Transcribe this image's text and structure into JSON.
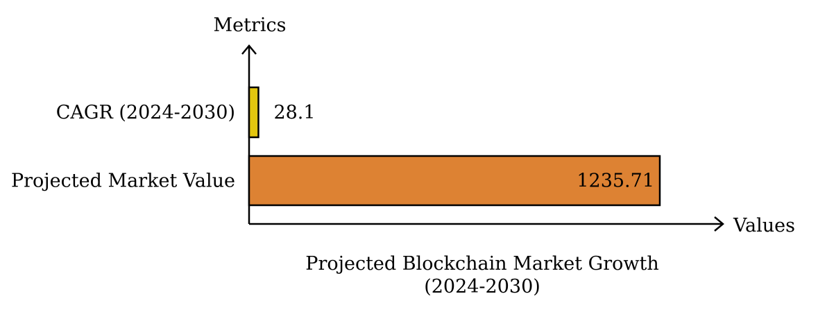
{
  "chart_data": {
    "type": "bar",
    "orientation": "horizontal",
    "title": "Projected Blockchain Market Growth\n(2024-2030)",
    "xlabel": "Values",
    "ylabel": "Metrics",
    "categories": [
      "CAGR (2024-2030)",
      "Projected Market Value"
    ],
    "values": [
      28.1,
      1235.71
    ],
    "data_labels": [
      "28.1",
      "1235.71"
    ],
    "colors": [
      "#e3c60f",
      "#dd8233"
    ],
    "grid": false,
    "legend": "none"
  }
}
